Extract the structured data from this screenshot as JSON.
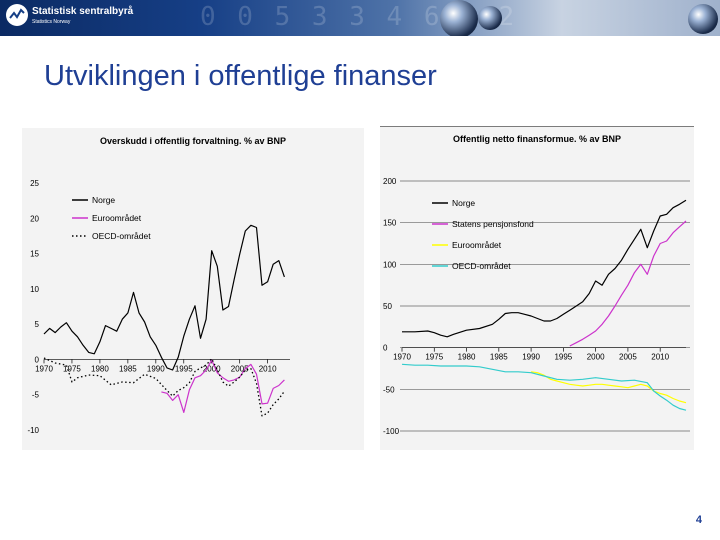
{
  "header": {
    "org_name": "Statistisk sentralbyrå",
    "org_subtitle": "Statistics Norway"
  },
  "page": {
    "title": "Utviklingen i offentlige finanser",
    "number": "4"
  },
  "colors": {
    "title": "#1f3f94",
    "norge": "#000000",
    "pensjonsfond": "#cc33cc",
    "euro": "#ffff00",
    "oecd": "#33cccc",
    "panel_bg": "#f3f3f3"
  },
  "chart_data": [
    {
      "type": "line",
      "title": "Overskudd i offentlig forvaltning. % av BNP",
      "xlabel": "",
      "ylabel": "",
      "xlim": [
        1970,
        2014
      ],
      "ylim": [
        -10,
        25
      ],
      "yticks": [
        25,
        20,
        15,
        10,
        5,
        0,
        -5,
        -10
      ],
      "xticks": [
        1970,
        1975,
        1980,
        1985,
        1990,
        1995,
        2000,
        2005,
        2010
      ],
      "grid": false,
      "legend": "top-left",
      "series": [
        {
          "name": "Norge",
          "style": "solid",
          "colorKey": "norge",
          "points": [
            [
              1970,
              3.6
            ],
            [
              1971,
              4.4
            ],
            [
              1972,
              3.8
            ],
            [
              1973,
              4.6
            ],
            [
              1974,
              5.2
            ],
            [
              1975,
              4.0
            ],
            [
              1976,
              3.2
            ],
            [
              1977,
              2.0
            ],
            [
              1978,
              1.0
            ],
            [
              1979,
              0.8
            ],
            [
              1980,
              2.5
            ],
            [
              1981,
              4.8
            ],
            [
              1982,
              4.4
            ],
            [
              1983,
              4.0
            ],
            [
              1984,
              5.7
            ],
            [
              1985,
              6.6
            ],
            [
              1986,
              9.5
            ],
            [
              1987,
              6.6
            ],
            [
              1988,
              5.3
            ],
            [
              1989,
              3.2
            ],
            [
              1990,
              2.0
            ],
            [
              1991,
              0.3
            ],
            [
              1992,
              -1.2
            ],
            [
              1993,
              -1.5
            ],
            [
              1994,
              0.3
            ],
            [
              1995,
              3.3
            ],
            [
              1996,
              5.7
            ],
            [
              1997,
              7.6
            ],
            [
              1998,
              3.0
            ],
            [
              1999,
              5.7
            ],
            [
              2000,
              15.4
            ],
            [
              2001,
              13.2
            ],
            [
              2002,
              7.0
            ],
            [
              2003,
              7.5
            ],
            [
              2004,
              11.3
            ],
            [
              2005,
              14.9
            ],
            [
              2006,
              18.2
            ],
            [
              2007,
              19.0
            ],
            [
              2008,
              18.7
            ],
            [
              2009,
              10.5
            ],
            [
              2010,
              11.0
            ],
            [
              2011,
              13.5
            ],
            [
              2012,
              14.0
            ],
            [
              2013,
              11.7
            ]
          ]
        },
        {
          "name": "Euroområdet",
          "style": "solid",
          "colorKey": "pensjonsfond",
          "points": [
            [
              1991,
              -4.6
            ],
            [
              1992,
              -4.8
            ],
            [
              1993,
              -5.8
            ],
            [
              1994,
              -5.0
            ],
            [
              1995,
              -7.5
            ],
            [
              1996,
              -4.3
            ],
            [
              1997,
              -2.6
            ],
            [
              1998,
              -2.3
            ],
            [
              1999,
              -1.5
            ],
            [
              2000,
              -0.1
            ],
            [
              2001,
              -1.9
            ],
            [
              2002,
              -2.6
            ],
            [
              2003,
              -3.1
            ],
            [
              2004,
              -2.9
            ],
            [
              2005,
              -2.5
            ],
            [
              2006,
              -1.3
            ],
            [
              2007,
              -0.7
            ],
            [
              2008,
              -2.1
            ],
            [
              2009,
              -6.3
            ],
            [
              2010,
              -6.2
            ],
            [
              2011,
              -4.1
            ],
            [
              2012,
              -3.7
            ],
            [
              2013,
              -2.9
            ]
          ]
        },
        {
          "name": "OECD-området",
          "style": "dotted",
          "colorKey": "oecd",
          "points": [
            [
              1970,
              0.2
            ],
            [
              1972,
              -0.5
            ],
            [
              1974,
              -0.8
            ],
            [
              1975,
              -3.2
            ],
            [
              1976,
              -2.6
            ],
            [
              1978,
              -2.2
            ],
            [
              1980,
              -2.3
            ],
            [
              1982,
              -3.6
            ],
            [
              1984,
              -3.2
            ],
            [
              1986,
              -3.3
            ],
            [
              1988,
              -2.1
            ],
            [
              1990,
              -2.7
            ],
            [
              1992,
              -4.4
            ],
            [
              1993,
              -5.2
            ],
            [
              1994,
              -4.4
            ],
            [
              1995,
              -4.0
            ],
            [
              1996,
              -3.3
            ],
            [
              1997,
              -1.7
            ],
            [
              1998,
              -1.2
            ],
            [
              1999,
              -0.8
            ],
            [
              2000,
              0.1
            ],
            [
              2001,
              -1.5
            ],
            [
              2002,
              -3.2
            ],
            [
              2003,
              -3.8
            ],
            [
              2004,
              -3.2
            ],
            [
              2005,
              -2.5
            ],
            [
              2006,
              -1.5
            ],
            [
              2007,
              -1.3
            ],
            [
              2008,
              -3.4
            ],
            [
              2009,
              -8.0
            ],
            [
              2010,
              -7.6
            ],
            [
              2011,
              -6.4
            ],
            [
              2012,
              -5.6
            ],
            [
              2013,
              -4.5
            ]
          ]
        }
      ]
    },
    {
      "type": "line",
      "title": "Offentlig netto finansformue. % av BNP",
      "xlabel": "",
      "ylabel": "",
      "xlim": [
        1970,
        2014
      ],
      "ylim": [
        -100,
        200
      ],
      "yticks": [
        200,
        150,
        100,
        50,
        0,
        -50,
        -100
      ],
      "xticks": [
        1970,
        1975,
        1980,
        1985,
        1990,
        1995,
        2000,
        2005,
        2010
      ],
      "grid": true,
      "legend": "top-left",
      "series": [
        {
          "name": "Norge",
          "style": "solid",
          "colorKey": "norge",
          "points": [
            [
              1970,
              19
            ],
            [
              1972,
              19
            ],
            [
              1974,
              20
            ],
            [
              1975,
              18
            ],
            [
              1976,
              15
            ],
            [
              1977,
              13
            ],
            [
              1978,
              16
            ],
            [
              1980,
              21
            ],
            [
              1982,
              23
            ],
            [
              1984,
              28
            ],
            [
              1985,
              34
            ],
            [
              1986,
              41
            ],
            [
              1987,
              42
            ],
            [
              1988,
              42
            ],
            [
              1989,
              40
            ],
            [
              1990,
              38
            ],
            [
              1991,
              35
            ],
            [
              1992,
              32
            ],
            [
              1993,
              32
            ],
            [
              1994,
              35
            ],
            [
              1995,
              40
            ],
            [
              1996,
              45
            ],
            [
              1997,
              50
            ],
            [
              1998,
              55
            ],
            [
              1999,
              65
            ],
            [
              2000,
              80
            ],
            [
              2001,
              75
            ],
            [
              2002,
              88
            ],
            [
              2003,
              95
            ],
            [
              2004,
              105
            ],
            [
              2005,
              118
            ],
            [
              2006,
              130
            ],
            [
              2007,
              142
            ],
            [
              2008,
              120
            ],
            [
              2009,
              140
            ],
            [
              2010,
              158
            ],
            [
              2011,
              160
            ],
            [
              2012,
              168
            ],
            [
              2013,
              172
            ],
            [
              2014,
              177
            ]
          ]
        },
        {
          "name": "Statens pensjonsfond",
          "style": "solid",
          "colorKey": "pensjonsfond",
          "points": [
            [
              1996,
              2
            ],
            [
              1997,
              6
            ],
            [
              1998,
              10
            ],
            [
              1999,
              15
            ],
            [
              2000,
              20
            ],
            [
              2001,
              28
            ],
            [
              2002,
              38
            ],
            [
              2003,
              50
            ],
            [
              2004,
              63
            ],
            [
              2005,
              75
            ],
            [
              2006,
              90
            ],
            [
              2007,
              100
            ],
            [
              2008,
              88
            ],
            [
              2009,
              110
            ],
            [
              2010,
              125
            ],
            [
              2011,
              128
            ],
            [
              2012,
              138
            ],
            [
              2013,
              145
            ],
            [
              2014,
              152
            ]
          ]
        },
        {
          "name": "Euroområdet",
          "style": "solid",
          "colorKey": "euro",
          "points": [
            [
              1990,
              -29
            ],
            [
              1991,
              -30
            ],
            [
              1992,
              -33
            ],
            [
              1993,
              -38
            ],
            [
              1994,
              -40
            ],
            [
              1995,
              -42
            ],
            [
              1996,
              -44
            ],
            [
              1997,
              -45
            ],
            [
              1998,
              -46
            ],
            [
              1999,
              -45
            ],
            [
              2000,
              -44
            ],
            [
              2001,
              -44
            ],
            [
              2002,
              -45
            ],
            [
              2003,
              -46
            ],
            [
              2004,
              -47
            ],
            [
              2005,
              -48
            ],
            [
              2006,
              -46
            ],
            [
              2007,
              -44
            ],
            [
              2008,
              -46
            ],
            [
              2009,
              -52
            ],
            [
              2010,
              -55
            ],
            [
              2011,
              -57
            ],
            [
              2012,
              -61
            ],
            [
              2013,
              -64
            ],
            [
              2014,
              -66
            ]
          ]
        },
        {
          "name": "OECD-området",
          "style": "solid",
          "colorKey": "oecd",
          "points": [
            [
              1970,
              -20
            ],
            [
              1972,
              -21
            ],
            [
              1974,
              -21
            ],
            [
              1976,
              -22
            ],
            [
              1978,
              -22
            ],
            [
              1980,
              -22
            ],
            [
              1982,
              -23
            ],
            [
              1984,
              -26
            ],
            [
              1986,
              -29
            ],
            [
              1988,
              -29
            ],
            [
              1990,
              -30
            ],
            [
              1992,
              -34
            ],
            [
              1994,
              -38
            ],
            [
              1996,
              -39
            ],
            [
              1998,
              -38
            ],
            [
              2000,
              -36
            ],
            [
              2002,
              -38
            ],
            [
              2004,
              -40
            ],
            [
              2006,
              -39
            ],
            [
              2008,
              -42
            ],
            [
              2009,
              -52
            ],
            [
              2010,
              -58
            ],
            [
              2011,
              -63
            ],
            [
              2012,
              -69
            ],
            [
              2013,
              -73
            ],
            [
              2014,
              -75
            ]
          ]
        }
      ]
    }
  ]
}
